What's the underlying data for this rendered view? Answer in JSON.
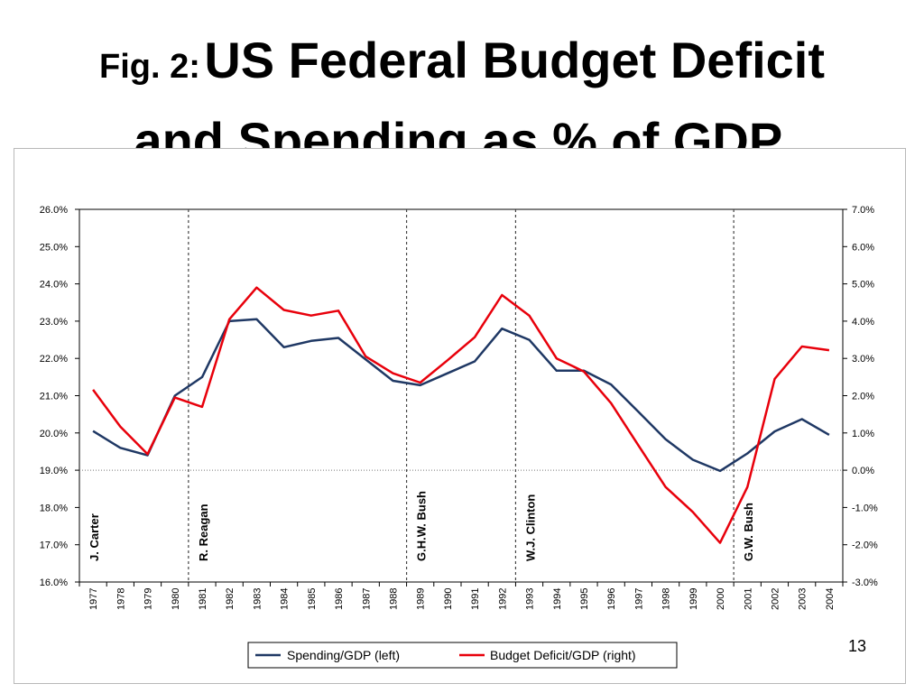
{
  "slide": {
    "title_prefix": "Fig. 2:",
    "title_main_line1": "US Federal Budget Deficit",
    "title_main_line2": "and Spending as % of GDP.",
    "page_number": "13"
  },
  "chart_data": {
    "type": "line",
    "title": "",
    "xlabel": "",
    "x": [
      "1977",
      "1978",
      "1979",
      "1980",
      "1981",
      "1982",
      "1983",
      "1984",
      "1985",
      "1986",
      "1987",
      "1988",
      "1989",
      "1990",
      "1991",
      "1992",
      "1993",
      "1994",
      "1995",
      "1996",
      "1997",
      "1998",
      "1999",
      "2000",
      "2001",
      "2002",
      "2003",
      "2004"
    ],
    "ylim_left": [
      16.0,
      26.0
    ],
    "ylim_right": [
      -3.0,
      7.0
    ],
    "yticks_left": [
      "16.0%",
      "17.0%",
      "18.0%",
      "19.0%",
      "20.0%",
      "21.0%",
      "22.0%",
      "23.0%",
      "24.0%",
      "25.0%",
      "26.0%"
    ],
    "yticks_right": [
      "-3.0%",
      "-2.0%",
      "-1.0%",
      "0.0%",
      "1.0%",
      "2.0%",
      "3.0%",
      "4.0%",
      "5.0%",
      "6.0%",
      "7.0%"
    ],
    "series": [
      {
        "name": "Spending/GDP (left)",
        "axis": "left",
        "color": "#1f3864",
        "values": [
          20.05,
          19.6,
          19.4,
          21.0,
          21.5,
          23.0,
          23.05,
          22.3,
          22.47,
          22.55,
          21.97,
          21.4,
          21.28,
          21.6,
          21.92,
          22.8,
          22.5,
          21.67,
          21.67,
          21.3,
          20.57,
          19.83,
          19.28,
          18.98,
          19.45,
          20.04,
          20.37,
          19.95
        ]
      },
      {
        "name": "Budget Deficit/GDP (right)",
        "axis": "right",
        "color": "#e8000b",
        "values": [
          2.16,
          1.17,
          0.43,
          1.95,
          1.7,
          4.05,
          4.9,
          4.3,
          4.15,
          4.28,
          3.05,
          2.6,
          2.35,
          2.95,
          3.57,
          4.7,
          4.15,
          3.0,
          2.65,
          1.8,
          0.67,
          -0.45,
          -1.12,
          -1.95,
          -0.45,
          2.45,
          3.32,
          3.22
        ]
      }
    ],
    "presidents": [
      {
        "label": "J. Carter",
        "start": "1977"
      },
      {
        "label": "R. Reagan",
        "start": "1981"
      },
      {
        "label": "G.H.W. Bush",
        "start": "1989"
      },
      {
        "label": "W.J. Clinton",
        "start": "1993"
      },
      {
        "label": "G.W. Bush",
        "start": "2001"
      }
    ],
    "reference_line_right": 0.0,
    "grid": false,
    "legend": "bottom-center"
  }
}
